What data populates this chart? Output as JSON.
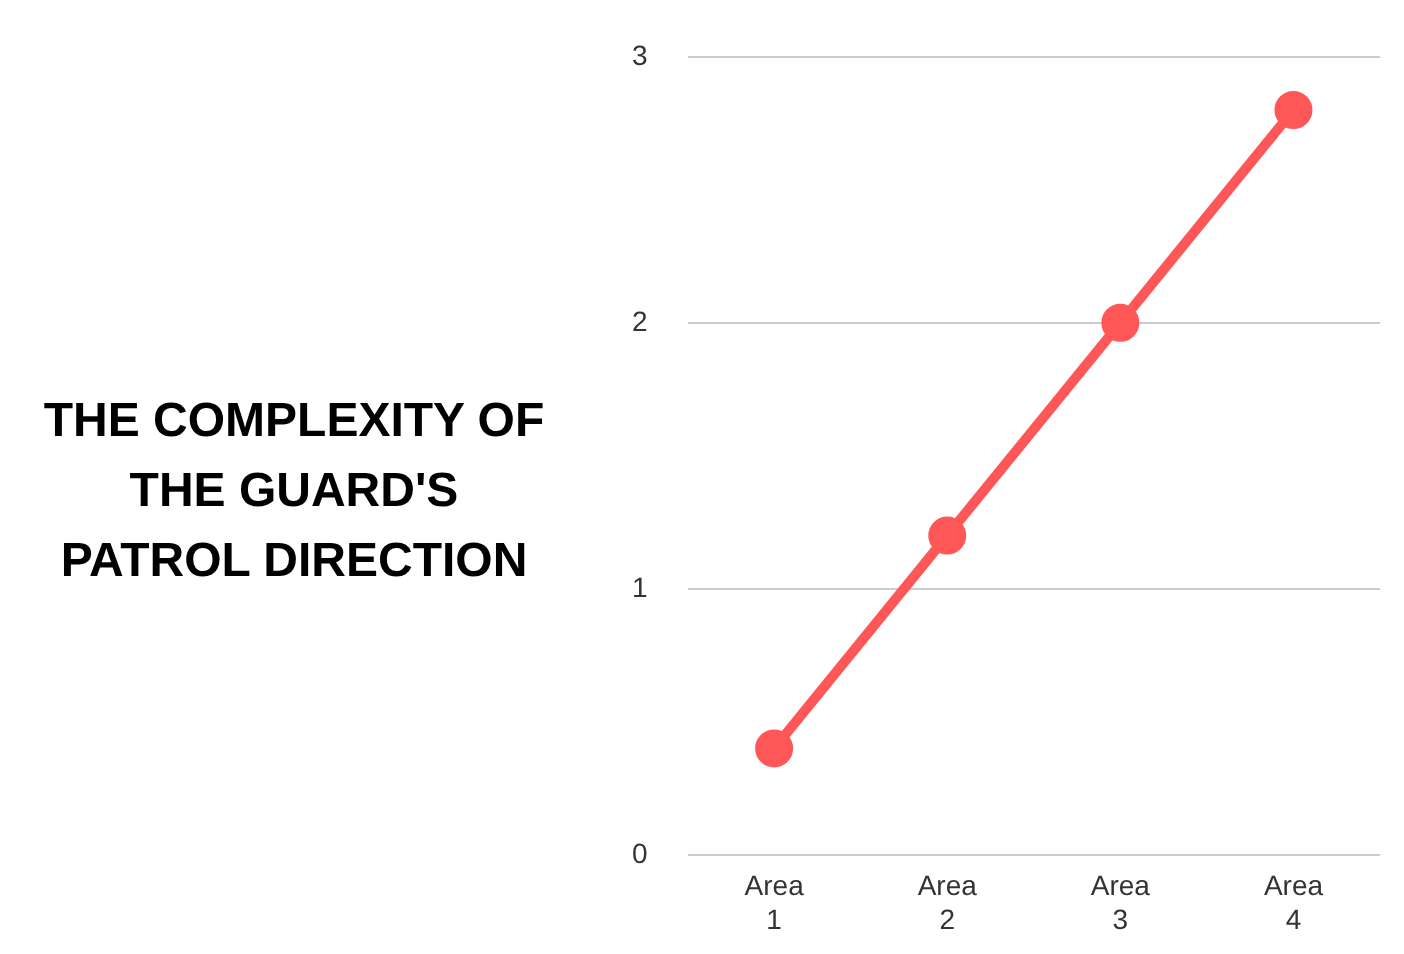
{
  "chart_data": {
    "type": "line",
    "title": "THE COMPLEXITY OF THE GUARD'S PATROL DIRECTION",
    "categories": [
      "Area 1",
      "Area 2",
      "Area 3",
      "Area 4"
    ],
    "series": [
      {
        "color": "#ff5757",
        "values": [
          0.4,
          1.2,
          2.0,
          2.8
        ]
      }
    ],
    "ylim": [
      0,
      3
    ],
    "yticks": [
      0,
      1,
      2,
      3
    ],
    "grid": "y",
    "legend": false,
    "marker": "circle",
    "line_style": "solid"
  }
}
